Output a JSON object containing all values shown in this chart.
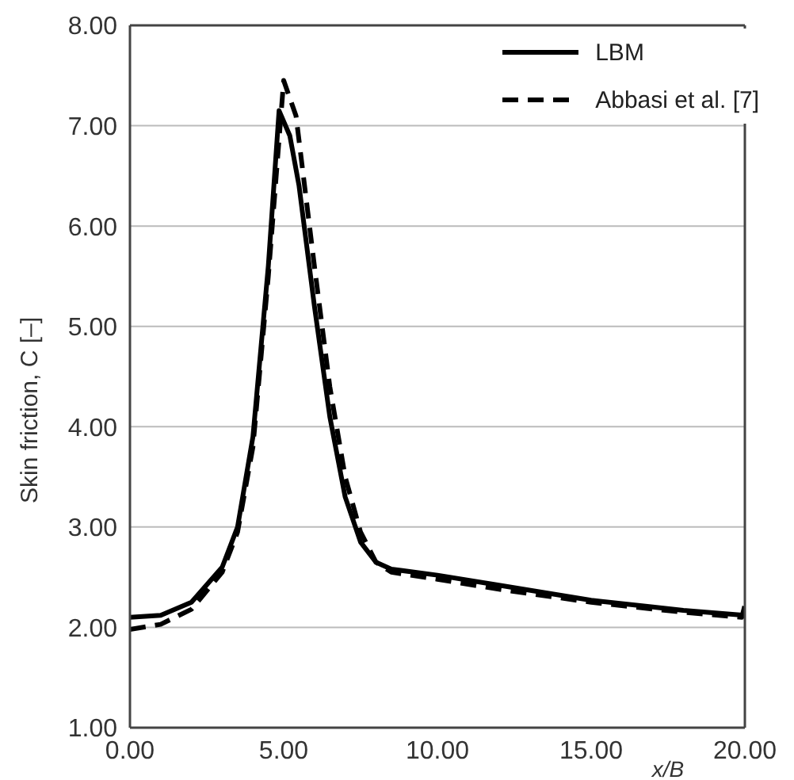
{
  "chart_data": {
    "type": "line",
    "xlabel": "x/B",
    "ylabel": "Skin friction, C [–]",
    "xlim": [
      0,
      20
    ],
    "xticks": [
      {
        "value": 0,
        "label": "0.00"
      },
      {
        "value": 5,
        "label": "5.00"
      },
      {
        "value": 10,
        "label": "10.00"
      },
      {
        "value": 15,
        "label": "15.00"
      },
      {
        "value": 20,
        "label": "20.00"
      }
    ],
    "ylim": [
      1,
      8
    ],
    "yticks": [
      {
        "value": 1,
        "label": "1.00"
      },
      {
        "value": 2,
        "label": "2.00"
      },
      {
        "value": 3,
        "label": "3.00"
      },
      {
        "value": 4,
        "label": "4.00"
      },
      {
        "value": 5,
        "label": "5.00"
      },
      {
        "value": 6,
        "label": "6.00"
      },
      {
        "value": 7,
        "label": "7.00"
      },
      {
        "value": 8,
        "label": "8.00"
      }
    ],
    "grid": "y",
    "legend": "top right",
    "marker": "none",
    "series": [
      {
        "name": "LBM",
        "color": "#000000",
        "line_style": "solid",
        "x": [
          0,
          1,
          2,
          3,
          3.5,
          4,
          4.5,
          4.85,
          5.2,
          5.5,
          6,
          6.5,
          7,
          7.5,
          8,
          8.5,
          10,
          12,
          15,
          18,
          20
        ],
        "values": [
          2.1,
          2.12,
          2.25,
          2.6,
          3.0,
          3.9,
          5.6,
          7.15,
          6.9,
          6.4,
          5.2,
          4.1,
          3.3,
          2.85,
          2.65,
          2.58,
          2.52,
          2.42,
          2.27,
          2.17,
          2.12
        ]
      },
      {
        "name": "Abbasi et al. [7]",
        "color": "#000000",
        "line_style": "dashed",
        "x": [
          0,
          1,
          2,
          3,
          3.5,
          4,
          4.5,
          5,
          5.4,
          6,
          6.5,
          7,
          7.5,
          8,
          8.5,
          10,
          12,
          15,
          18,
          19.9,
          20
        ],
        "values": [
          1.98,
          2.03,
          2.18,
          2.55,
          2.95,
          3.8,
          5.5,
          7.45,
          7.1,
          5.6,
          4.4,
          3.5,
          2.95,
          2.65,
          2.55,
          2.48,
          2.38,
          2.25,
          2.15,
          2.1,
          2.22
        ]
      }
    ]
  }
}
